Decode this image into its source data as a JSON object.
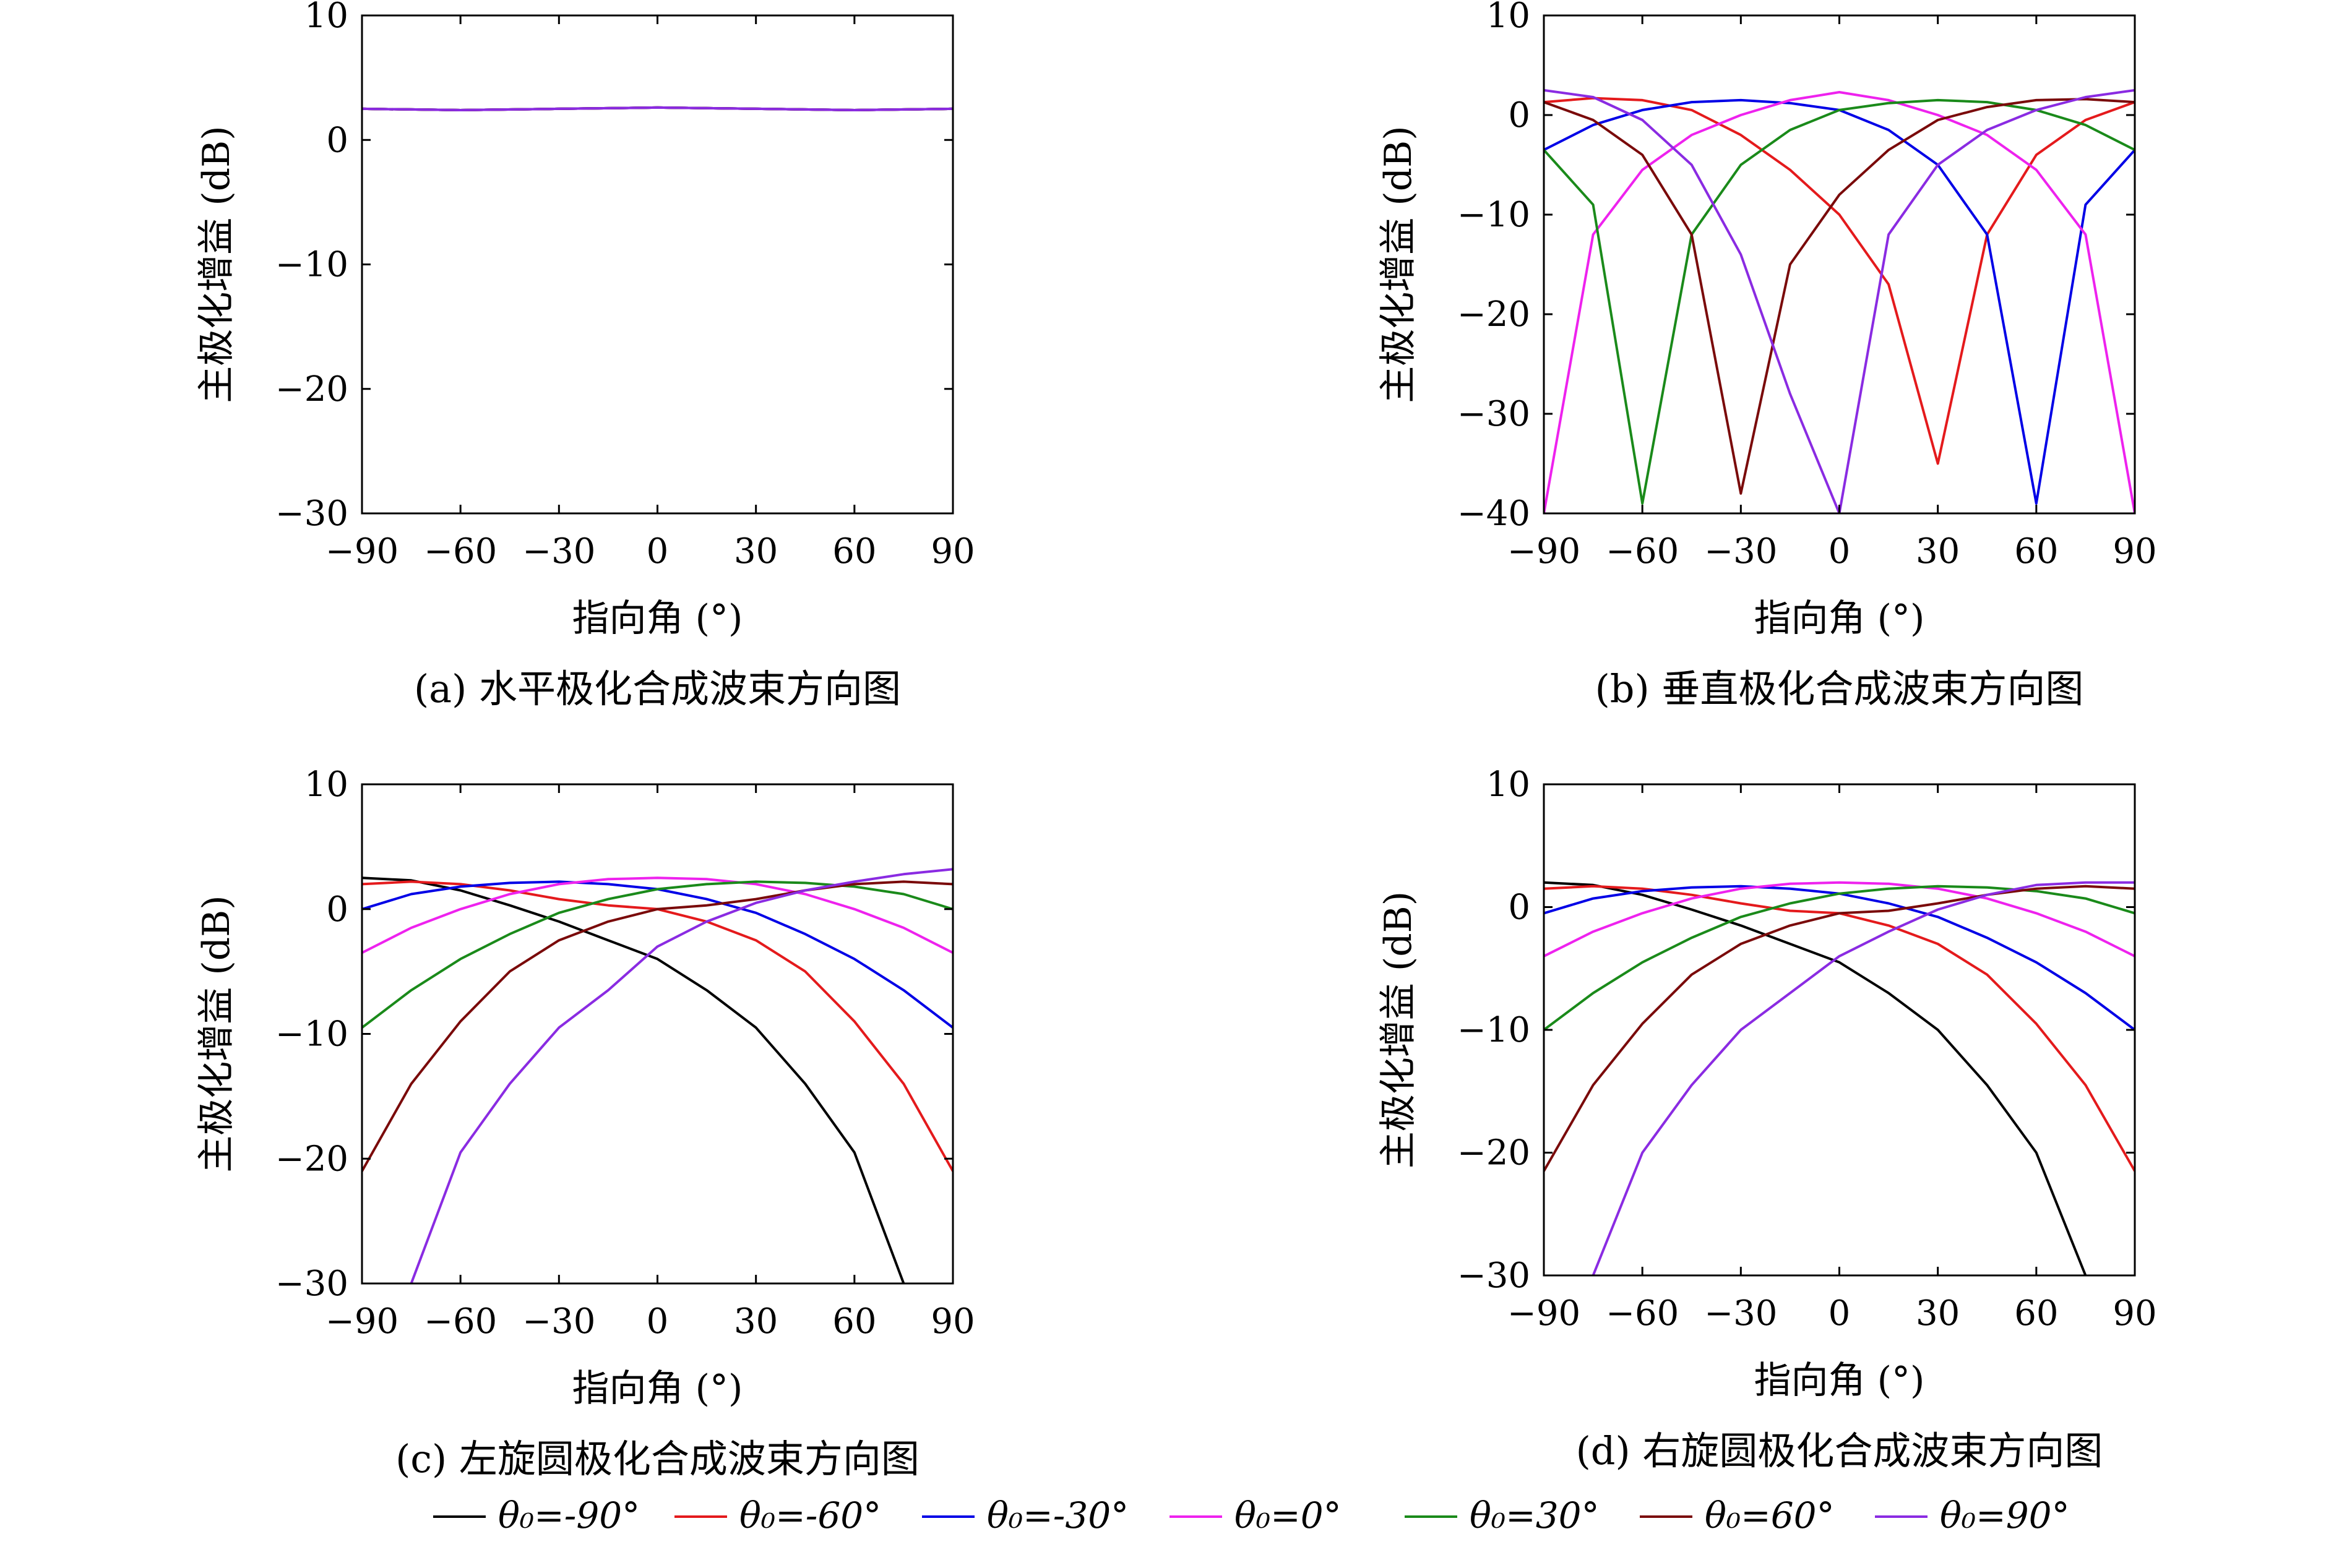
{
  "legend": [
    {
      "label": "θ₀=-90°",
      "color": "#000000"
    },
    {
      "label": "θ₀=-60°",
      "color": "#e41a1c"
    },
    {
      "label": "θ₀=-30°",
      "color": "#0000e6"
    },
    {
      "label": "θ₀=0°",
      "color": "#ee22ee"
    },
    {
      "label": "θ₀=30°",
      "color": "#1a8a1a"
    },
    {
      "label": "θ₀=60°",
      "color": "#7a0a0a"
    },
    {
      "label": "θ₀=90°",
      "color": "#8a2be2"
    }
  ],
  "chart_data": [
    {
      "type": "line",
      "caption": "(a) 水平极化合成波束方向图",
      "xlabel": "指向角 (°)",
      "ylabel": "主极化增益 (dB)",
      "xlim": [
        -90,
        90
      ],
      "ylim": [
        -30,
        10
      ],
      "xticks": [
        -90,
        -60,
        -30,
        0,
        30,
        60,
        90
      ],
      "yticks": [
        -30,
        -20,
        -10,
        0,
        10
      ],
      "x": [
        -90,
        -60,
        -30,
        0,
        30,
        60,
        90
      ],
      "series": [
        {
          "name": "θ₀=-90°",
          "values": [
            2.5,
            2.4,
            2.5,
            2.6,
            2.5,
            2.4,
            2.5
          ]
        },
        {
          "name": "θ₀=-60°",
          "values": [
            2.5,
            2.4,
            2.5,
            2.6,
            2.5,
            2.4,
            2.5
          ]
        },
        {
          "name": "θ₀=-30°",
          "values": [
            2.5,
            2.4,
            2.5,
            2.6,
            2.5,
            2.4,
            2.5
          ]
        },
        {
          "name": "θ₀=0°",
          "values": [
            2.5,
            2.4,
            2.5,
            2.6,
            2.5,
            2.4,
            2.5
          ]
        },
        {
          "name": "θ₀=30°",
          "values": [
            2.5,
            2.4,
            2.5,
            2.6,
            2.5,
            2.4,
            2.5
          ]
        },
        {
          "name": "θ₀=60°",
          "values": [
            2.5,
            2.4,
            2.5,
            2.6,
            2.5,
            2.4,
            2.5
          ]
        },
        {
          "name": "θ₀=90°",
          "values": [
            2.5,
            2.4,
            2.5,
            2.6,
            2.5,
            2.4,
            2.5
          ]
        }
      ]
    },
    {
      "type": "line",
      "caption": "(b) 垂直极化合成波束方向图",
      "xlabel": "指向角 (°)",
      "ylabel": "主极化增益 (dB)",
      "xlim": [
        -90,
        90
      ],
      "ylim": [
        -40,
        10
      ],
      "xticks": [
        -90,
        -60,
        -30,
        0,
        30,
        60,
        90
      ],
      "yticks": [
        -40,
        -30,
        -20,
        -10,
        0,
        10
      ],
      "x": [
        -90,
        -75,
        -60,
        -45,
        -30,
        -15,
        0,
        15,
        30,
        45,
        60,
        75,
        90
      ],
      "series": [
        {
          "name": "θ₀=-60°",
          "values": [
            1.3,
            1.7,
            1.5,
            0.5,
            -2.0,
            -5.5,
            -10.0,
            -17.0,
            -35.0,
            -12.0,
            -4.0,
            -0.5,
            1.3
          ]
        },
        {
          "name": "θ₀=-30°",
          "values": [
            -3.5,
            -1.0,
            0.5,
            1.3,
            1.5,
            1.2,
            0.5,
            -1.5,
            -5.0,
            -12.0,
            -39.0,
            -9.0,
            -3.5
          ]
        },
        {
          "name": "θ₀=0°",
          "values": [
            -40.0,
            -12.0,
            -5.5,
            -2.0,
            0.0,
            1.5,
            2.3,
            1.5,
            0.0,
            -2.0,
            -5.5,
            -12.0,
            -40.0
          ]
        },
        {
          "name": "θ₀=30°",
          "values": [
            -3.5,
            -9.0,
            -39.0,
            -12.0,
            -5.0,
            -1.5,
            0.5,
            1.2,
            1.5,
            1.3,
            0.5,
            -1.0,
            -3.5
          ]
        },
        {
          "name": "θ₀=60°",
          "values": [
            1.3,
            -0.5,
            -4.0,
            -12.0,
            -38.0,
            -15.0,
            -8.0,
            -3.5,
            -0.5,
            0.8,
            1.5,
            1.6,
            1.3
          ]
        },
        {
          "name": "θ₀=90°",
          "values": [
            2.5,
            1.8,
            -0.5,
            -5.0,
            -14.0,
            -28.0,
            -40.0,
            -12.0,
            -5.0,
            -1.5,
            0.5,
            1.8,
            2.5
          ]
        }
      ]
    },
    {
      "type": "line",
      "caption": "(c) 左旋圆极化合成波束方向图",
      "xlabel": "指向角 (°)",
      "ylabel": "主极化增益 (dB)",
      "xlim": [
        -90,
        90
      ],
      "ylim": [
        -30,
        10
      ],
      "xticks": [
        -90,
        -60,
        -30,
        0,
        30,
        60,
        90
      ],
      "yticks": [
        -30,
        -20,
        -10,
        0,
        10
      ],
      "x": [
        -90,
        -75,
        -60,
        -45,
        -30,
        -15,
        0,
        15,
        30,
        45,
        60,
        75,
        90
      ],
      "series": [
        {
          "name": "θ₀=-90°",
          "values": [
            2.5,
            2.3,
            1.5,
            0.3,
            -1.0,
            -2.5,
            -4.0,
            -6.5,
            -9.5,
            -14.0,
            -19.5,
            -30.0,
            null
          ]
        },
        {
          "name": "θ₀=-60°",
          "values": [
            2.0,
            2.2,
            2.0,
            1.5,
            0.8,
            0.3,
            0.0,
            -1.0,
            -2.5,
            -5.0,
            -9.0,
            -14.0,
            -21.0
          ]
        },
        {
          "name": "θ₀=-30°",
          "values": [
            0.0,
            1.2,
            1.8,
            2.1,
            2.2,
            2.0,
            1.6,
            0.8,
            -0.3,
            -2.0,
            -4.0,
            -6.5,
            -9.5
          ]
        },
        {
          "name": "θ₀=0°",
          "values": [
            -3.5,
            -1.5,
            0.0,
            1.2,
            2.0,
            2.4,
            2.5,
            2.4,
            2.0,
            1.2,
            0.0,
            -1.5,
            -3.5
          ]
        },
        {
          "name": "θ₀=30°",
          "values": [
            -9.5,
            -6.5,
            -4.0,
            -2.0,
            -0.3,
            0.8,
            1.6,
            2.0,
            2.2,
            2.1,
            1.8,
            1.2,
            0.0
          ]
        },
        {
          "name": "θ₀=60°",
          "values": [
            -21.0,
            -14.0,
            -9.0,
            -5.0,
            -2.5,
            -1.0,
            0.0,
            0.3,
            0.8,
            1.5,
            2.0,
            2.2,
            2.0
          ]
        },
        {
          "name": "θ₀=90°",
          "values": [
            null,
            -30.0,
            -19.5,
            -14.0,
            -9.5,
            -6.5,
            -3.0,
            -1.0,
            0.5,
            1.5,
            2.2,
            2.8,
            3.2
          ]
        }
      ]
    },
    {
      "type": "line",
      "caption": "(d) 右旋圆极化合成波束方向图",
      "xlabel": "指向角 (°)",
      "ylabel": "主极化增益 (dB)",
      "xlim": [
        -90,
        90
      ],
      "ylim": [
        -30,
        10
      ],
      "xticks": [
        -90,
        -60,
        -30,
        0,
        30,
        60,
        90
      ],
      "yticks": [
        -30,
        -20,
        -10,
        0,
        10
      ],
      "x": [
        -90,
        -75,
        -60,
        -45,
        -30,
        -15,
        0,
        15,
        30,
        45,
        60,
        75,
        90
      ],
      "series": [
        {
          "name": "θ₀=-90°",
          "values": [
            2.0,
            1.8,
            1.0,
            -0.2,
            -1.5,
            -3.0,
            -4.5,
            -7.0,
            -10.0,
            -14.5,
            -20.0,
            -30.0,
            null
          ]
        },
        {
          "name": "θ₀=-60°",
          "values": [
            1.5,
            1.7,
            1.5,
            1.0,
            0.3,
            -0.3,
            -0.5,
            -1.5,
            -3.0,
            -5.5,
            -9.5,
            -14.5,
            -21.5
          ]
        },
        {
          "name": "θ₀=-30°",
          "values": [
            -0.5,
            0.7,
            1.3,
            1.6,
            1.7,
            1.5,
            1.1,
            0.3,
            -0.8,
            -2.5,
            -4.5,
            -7.0,
            -10.0
          ]
        },
        {
          "name": "θ₀=0°",
          "values": [
            -4.0,
            -2.0,
            -0.5,
            0.7,
            1.5,
            1.9,
            2.0,
            1.9,
            1.5,
            0.7,
            -0.5,
            -2.0,
            -4.0
          ]
        },
        {
          "name": "θ₀=30°",
          "values": [
            -10.0,
            -7.0,
            -4.5,
            -2.5,
            -0.8,
            0.3,
            1.1,
            1.5,
            1.7,
            1.6,
            1.3,
            0.7,
            -0.5
          ]
        },
        {
          "name": "θ₀=60°",
          "values": [
            -21.5,
            -14.5,
            -9.5,
            -5.5,
            -3.0,
            -1.5,
            -0.5,
            -0.3,
            0.3,
            1.0,
            1.5,
            1.7,
            1.5
          ]
        },
        {
          "name": "θ₀=90°",
          "values": [
            null,
            -30.0,
            -20.0,
            -14.5,
            -10.0,
            -7.0,
            -4.0,
            -2.0,
            -0.2,
            1.0,
            1.8,
            2.0,
            2.0
          ]
        }
      ]
    }
  ]
}
